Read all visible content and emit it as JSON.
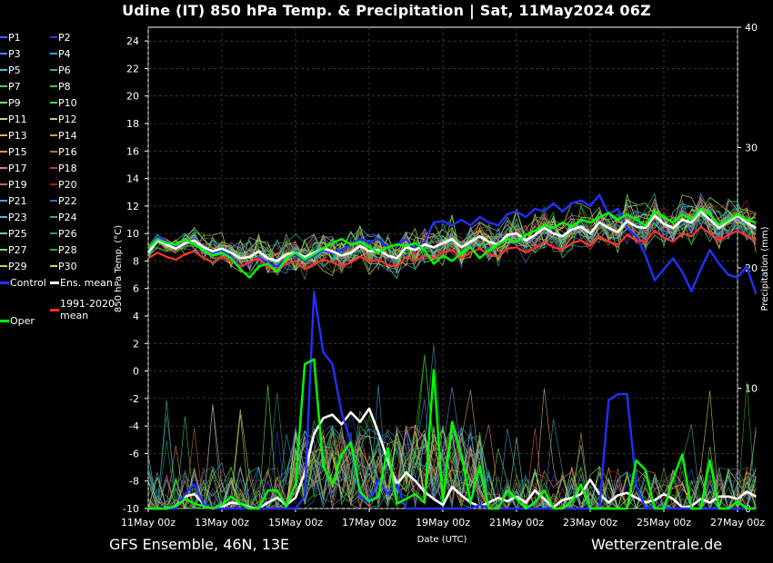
{
  "header": {
    "title": "Udine  (IT)  850 hPa Temp. & Precipitation | Sat, 11May2024 06Z"
  },
  "footer": {
    "left": "GFS Ensemble, 46N, 13E",
    "right": "Wetterzentrale.de"
  },
  "legend": [
    {
      "label": "P1",
      "color": "#4060ff"
    },
    {
      "label": "P2",
      "color": "#3040d0"
    },
    {
      "label": "P3",
      "color": "#5080ff"
    },
    {
      "label": "P4",
      "color": "#3aa0e0"
    },
    {
      "label": "P5",
      "color": "#50c0e0"
    },
    {
      "label": "P6",
      "color": "#40b080"
    },
    {
      "label": "P7",
      "color": "#40d060"
    },
    {
      "label": "P8",
      "color": "#50c040"
    },
    {
      "label": "P9",
      "color": "#80e060"
    },
    {
      "label": "P10",
      "color": "#30e030"
    },
    {
      "label": "P11",
      "color": "#e0d080"
    },
    {
      "label": "P12",
      "color": "#e0c060"
    },
    {
      "label": "P13",
      "color": "#e0b070"
    },
    {
      "label": "P14",
      "color": "#d0a050"
    },
    {
      "label": "P15",
      "color": "#e09050"
    },
    {
      "label": "P16",
      "color": "#c07030"
    },
    {
      "label": "P17",
      "color": "#e08070"
    },
    {
      "label": "P18",
      "color": "#c04040"
    },
    {
      "label": "P19",
      "color": "#d06060"
    },
    {
      "label": "P20",
      "color": "#a02020"
    },
    {
      "label": "P21",
      "color": "#6090e0"
    },
    {
      "label": "P22",
      "color": "#4070c0"
    },
    {
      "label": "P23",
      "color": "#60b0d0"
    },
    {
      "label": "P24",
      "color": "#40a0b0"
    },
    {
      "label": "P25",
      "color": "#60d0a0"
    },
    {
      "label": "P26",
      "color": "#30a060"
    },
    {
      "label": "P27",
      "color": "#70e070"
    },
    {
      "label": "P28",
      "color": "#30b030"
    },
    {
      "label": "P29",
      "color": "#a0e050"
    },
    {
      "label": "P30",
      "color": "#d0d050"
    },
    {
      "label": "Control",
      "color": "#2030ff",
      "wide": true
    },
    {
      "label": "Ens. mean",
      "color": "#ffffff",
      "wide": true
    },
    {
      "label": "1991-2020\nmean",
      "color": "#ff3030",
      "wide": true
    },
    {
      "label": "Oper",
      "color": "#00ff00",
      "wide": true
    }
  ],
  "chart_data": {
    "type": "line",
    "title": "Udine  (IT)  850 hPa Temp. & Precipitation | Sat, 11May2024 06Z",
    "xlabel": "Date (UTC)",
    "ylabel": "850 hPa Temp. (°C)",
    "y2label": "Precipitation (mm)",
    "x_ticks": [
      "11May 00z",
      "13May 00z",
      "15May 00z",
      "17May 00z",
      "19May 00z",
      "21May 00z",
      "23May 00z",
      "25May 00z",
      "27May 00z"
    ],
    "x_range_hours": [
      0,
      384
    ],
    "step_hours": 6,
    "ylim": [
      -10,
      25
    ],
    "y_ticks": [
      -10,
      -8,
      -6,
      -4,
      -2,
      0,
      2,
      4,
      6,
      8,
      10,
      12,
      14,
      16,
      18,
      20,
      22,
      24
    ],
    "y2lim": [
      0,
      40
    ],
    "y2_ticks": [
      0,
      10,
      20,
      30,
      40
    ],
    "grid": true,
    "temperature_series": [
      {
        "name": "Control",
        "color": "#2030ff",
        "values": [
          8.8,
          9.8,
          9.4,
          9.0,
          9.3,
          9.6,
          9.0,
          8.6,
          8.8,
          8.3,
          7.6,
          7.8,
          8.3,
          7.8,
          7.6,
          8.2,
          8.5,
          8.0,
          8.4,
          8.8,
          8.6,
          8.8,
          9.2,
          9.6,
          9.4,
          9.6,
          9.0,
          9.2,
          9.6,
          8.8,
          9.4,
          10.8,
          10.9,
          10.6,
          11.0,
          10.6,
          11.2,
          10.8,
          10.6,
          11.4,
          11.6,
          11.2,
          11.8,
          11.6,
          12.2,
          11.6,
          12.2,
          12.4,
          12.0,
          12.8,
          11.4,
          11.8,
          10.4,
          9.8,
          8.4,
          6.6,
          7.4,
          8.2,
          7.2,
          5.8,
          7.4,
          8.8,
          7.8,
          7.0,
          6.8,
          7.6,
          5.6
        ]
      },
      {
        "name": "Ens. mean",
        "color": "#ffffff",
        "values": [
          8.6,
          9.5,
          9.2,
          8.9,
          9.3,
          9.5,
          9.0,
          8.7,
          8.9,
          8.6,
          8.2,
          8.3,
          8.7,
          8.2,
          8.0,
          8.5,
          8.6,
          8.3,
          8.6,
          8.9,
          8.7,
          8.4,
          8.6,
          9.1,
          8.7,
          8.8,
          8.4,
          8.2,
          9.0,
          8.8,
          9.2,
          9.0,
          9.3,
          9.6,
          9.0,
          9.4,
          9.8,
          9.4,
          9.2,
          9.9,
          10.0,
          9.5,
          9.9,
          10.4,
          10.0,
          9.8,
          10.3,
          10.5,
          10.0,
          10.8,
          10.4,
          10.1,
          10.9,
          10.5,
          10.4,
          11.3,
          10.7,
          10.4,
          11.0,
          10.8,
          11.6,
          11.0,
          10.4,
          10.9,
          11.3,
          10.8,
          10.4
        ]
      },
      {
        "name": "1991-2020 mean",
        "color": "#ff3030",
        "values": [
          8.2,
          8.6,
          8.3,
          8.1,
          8.5,
          8.7,
          8.2,
          7.9,
          8.3,
          8.0,
          7.6,
          7.9,
          8.2,
          7.5,
          7.4,
          7.8,
          8.0,
          7.4,
          7.8,
          8.1,
          7.9,
          7.6,
          7.9,
          8.3,
          8.0,
          8.1,
          7.7,
          7.6,
          8.3,
          8.0,
          8.4,
          8.2,
          8.6,
          8.8,
          8.2,
          8.6,
          8.9,
          8.5,
          8.3,
          8.9,
          9.0,
          8.6,
          8.9,
          9.4,
          9.0,
          8.8,
          9.3,
          9.5,
          9.1,
          9.8,
          9.4,
          9.2,
          9.9,
          9.5,
          9.4,
          10.2,
          9.7,
          9.4,
          10.0,
          9.8,
          10.5,
          10.0,
          9.5,
          9.9,
          10.2,
          9.8,
          9.5
        ]
      },
      {
        "name": "Oper",
        "color": "#00ff00",
        "values": [
          8.9,
          9.6,
          9.3,
          9.2,
          9.6,
          9.2,
          8.8,
          8.4,
          8.6,
          8.2,
          7.4,
          6.8,
          7.6,
          7.8,
          7.2,
          8.2,
          8.6,
          8.1,
          8.5,
          8.9,
          9.3,
          9.6,
          9.2,
          9.4,
          9.0,
          8.6,
          9.0,
          9.2,
          9.1,
          9.3,
          8.8,
          7.8,
          8.4,
          8.0,
          8.6,
          9.0,
          8.2,
          8.8,
          9.2,
          9.6,
          9.4,
          9.9,
          10.2,
          10.6,
          10.4,
          10.8,
          10.5,
          11.0,
          10.8,
          11.2,
          11.5,
          11.0,
          11.4,
          11.0,
          10.6,
          11.6,
          11.2,
          10.8,
          11.4,
          11.0,
          11.8,
          11.4,
          10.6,
          11.0,
          11.4,
          11.0,
          10.8
        ]
      }
    ],
    "precipitation_series": [
      {
        "name": "Ens. mean",
        "color": "#ffffff",
        "values": [
          0,
          0,
          0,
          0.2,
          1.0,
          1.2,
          0.4,
          0,
          0.1,
          0.5,
          0.4,
          0.1,
          0,
          0.5,
          0.9,
          0.3,
          0.9,
          3.0,
          6.2,
          7.5,
          7.8,
          7.0,
          8.0,
          7.2,
          8.3,
          6.3,
          4.0,
          2.0,
          3.0,
          2.3,
          1.4,
          0.8,
          0.3,
          1.8,
          1.1,
          0.5,
          0.2,
          0.5,
          0.9,
          0.6,
          1.0,
          0.5,
          1.5,
          0.8,
          0.1,
          0.7,
          0.9,
          1.2,
          2.4,
          1.2,
          0.5,
          1.1,
          1.3,
          0.9,
          0.5,
          0.7,
          1.2,
          0.8,
          0.1,
          0.2,
          0.8,
          0.5,
          1.0,
          1.0,
          0.8,
          1.4,
          1.0
        ]
      },
      {
        "name": "Control",
        "color": "#2030ff",
        "values": [
          0,
          0,
          0,
          0,
          1.2,
          2.0,
          0.4,
          0,
          0,
          0,
          0,
          0,
          0,
          0,
          0,
          0,
          0,
          1.0,
          18.0,
          13.0,
          12.0,
          8.0,
          5.5,
          1.0,
          0.5,
          2.4,
          1.2,
          2.0,
          0,
          0,
          0,
          0,
          0,
          0,
          0,
          0,
          0.3,
          0,
          0,
          0,
          0,
          0,
          0,
          0,
          0,
          0,
          0,
          0,
          0,
          0,
          9.0,
          9.5,
          9.5,
          2.0,
          0,
          0,
          0,
          0,
          0,
          0,
          0,
          0,
          0,
          0,
          0,
          0,
          0
        ]
      },
      {
        "name": "Oper",
        "color": "#00ff00",
        "values": [
          0,
          0,
          0,
          0.2,
          0.8,
          0.4,
          0.2,
          0,
          0.3,
          1.0,
          0.4,
          0,
          0,
          1.5,
          1.5,
          0.2,
          2.0,
          12.0,
          12.4,
          3.5,
          2.0,
          4.5,
          5.5,
          1.4,
          0.6,
          1.0,
          5.0,
          0.4,
          0.8,
          1.2,
          0.5,
          11.5,
          0.6,
          7.2,
          4.5,
          0.5,
          3.5,
          0,
          0,
          1.5,
          0.8,
          0,
          0.5,
          1.5,
          0,
          0,
          0.6,
          2.0,
          0,
          0,
          0,
          0,
          0,
          4.0,
          3.2,
          0,
          0,
          2.5,
          4.5,
          0,
          0,
          4.0,
          0,
          0,
          0.6,
          0,
          0
        ]
      }
    ]
  }
}
